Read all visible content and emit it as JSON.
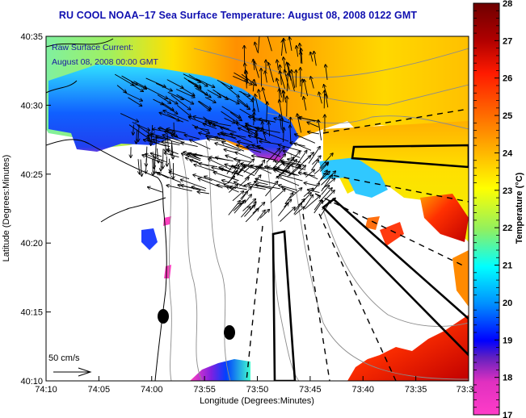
{
  "title": "RU COOL  NOAA–17  Sea Surface Temperature:  August 08, 2008 0122 GMT",
  "current_legend": {
    "line1": "Raw Surface Current:",
    "line2": "August 08, 2008 00:00 GMT"
  },
  "scale_arrow_label": "50 cm/s",
  "x_axis": {
    "label": "Longitude (Degrees:Minutes)",
    "ticks": [
      "74:10",
      "74:05",
      "74:00",
      "73:55",
      "73:50",
      "73:45",
      "73:40",
      "73:35",
      "73:3"
    ]
  },
  "y_axis": {
    "label": "Latitude (Degrees:Minutes)",
    "ticks": [
      "40:35",
      "40:30",
      "40:25",
      "40:20",
      "40:15",
      "40:10"
    ]
  },
  "colorbar": {
    "label": "Temperature (°C)",
    "min": 17,
    "max": 28,
    "ticks": [
      "28",
      "27",
      "26",
      "25",
      "24",
      "23",
      "22",
      "21",
      "20",
      "19",
      "18",
      "17"
    ]
  },
  "colors": {
    "title": "#1010b0",
    "legend_text": "#1a1aa0",
    "contour": "#8c8c8c",
    "coastline": "#000000"
  },
  "map_features": {
    "dots": [
      "mooring-dot",
      "mooring-dot"
    ],
    "boxes": [
      "restricted-area-box",
      "restricted-area-box",
      "restricted-area-box"
    ]
  }
}
